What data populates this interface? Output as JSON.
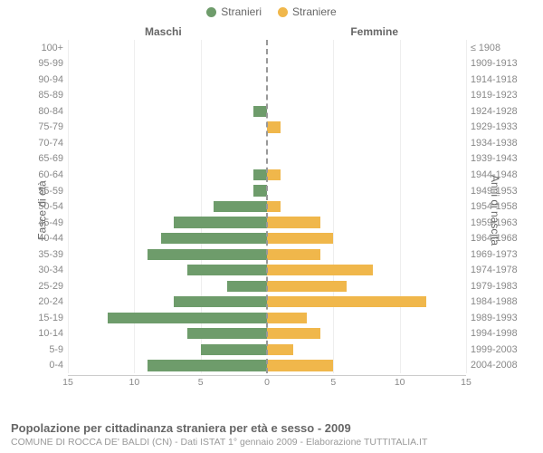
{
  "legend": {
    "male_label": "Stranieri",
    "female_label": "Straniere"
  },
  "headers": {
    "left": "Maschi",
    "right": "Femmine"
  },
  "axis_titles": {
    "left": "Fasce di età",
    "right": "Anni di nascita"
  },
  "colors": {
    "male": "#6e9c6b",
    "female": "#f0b74b",
    "center_line": "#999999",
    "grid": "#eeeeee",
    "axis": "#cccccc",
    "text": "#666666",
    "subtext": "#999999",
    "background": "#ffffff"
  },
  "chart": {
    "type": "population-pyramid",
    "x_max": 15,
    "x_ticks": [
      15,
      10,
      5,
      0,
      5,
      10,
      15
    ],
    "bar_height_ratio": 0.7,
    "rows": [
      {
        "age": "100+",
        "birth": "≤ 1908",
        "m": 0,
        "f": 0
      },
      {
        "age": "95-99",
        "birth": "1909-1913",
        "m": 0,
        "f": 0
      },
      {
        "age": "90-94",
        "birth": "1914-1918",
        "m": 0,
        "f": 0
      },
      {
        "age": "85-89",
        "birth": "1919-1923",
        "m": 0,
        "f": 0
      },
      {
        "age": "80-84",
        "birth": "1924-1928",
        "m": 1,
        "f": 0
      },
      {
        "age": "75-79",
        "birth": "1929-1933",
        "m": 0,
        "f": 1
      },
      {
        "age": "70-74",
        "birth": "1934-1938",
        "m": 0,
        "f": 0
      },
      {
        "age": "65-69",
        "birth": "1939-1943",
        "m": 0,
        "f": 0
      },
      {
        "age": "60-64",
        "birth": "1944-1948",
        "m": 1,
        "f": 1
      },
      {
        "age": "55-59",
        "birth": "1949-1953",
        "m": 1,
        "f": 0
      },
      {
        "age": "50-54",
        "birth": "1954-1958",
        "m": 4,
        "f": 1
      },
      {
        "age": "45-49",
        "birth": "1959-1963",
        "m": 7,
        "f": 4
      },
      {
        "age": "40-44",
        "birth": "1964-1968",
        "m": 8,
        "f": 5
      },
      {
        "age": "35-39",
        "birth": "1969-1973",
        "m": 9,
        "f": 4
      },
      {
        "age": "30-34",
        "birth": "1974-1978",
        "m": 6,
        "f": 8
      },
      {
        "age": "25-29",
        "birth": "1979-1983",
        "m": 3,
        "f": 6
      },
      {
        "age": "20-24",
        "birth": "1984-1988",
        "m": 7,
        "f": 12
      },
      {
        "age": "15-19",
        "birth": "1989-1993",
        "m": 12,
        "f": 3
      },
      {
        "age": "10-14",
        "birth": "1994-1998",
        "m": 6,
        "f": 4
      },
      {
        "age": "5-9",
        "birth": "1999-2003",
        "m": 5,
        "f": 2
      },
      {
        "age": "0-4",
        "birth": "2004-2008",
        "m": 9,
        "f": 5
      }
    ]
  },
  "footer": {
    "title": "Popolazione per cittadinanza straniera per età e sesso - 2009",
    "subtitle": "COMUNE DI ROCCA DE' BALDI (CN) - Dati ISTAT 1° gennaio 2009 - Elaborazione TUTTITALIA.IT"
  },
  "typography": {
    "legend_fontsize": 12,
    "header_fontsize": 12,
    "label_fontsize": 10.8,
    "tick_fontsize": 10.5,
    "footer_title_fontsize": 13,
    "footer_sub_fontsize": 10.5
  }
}
